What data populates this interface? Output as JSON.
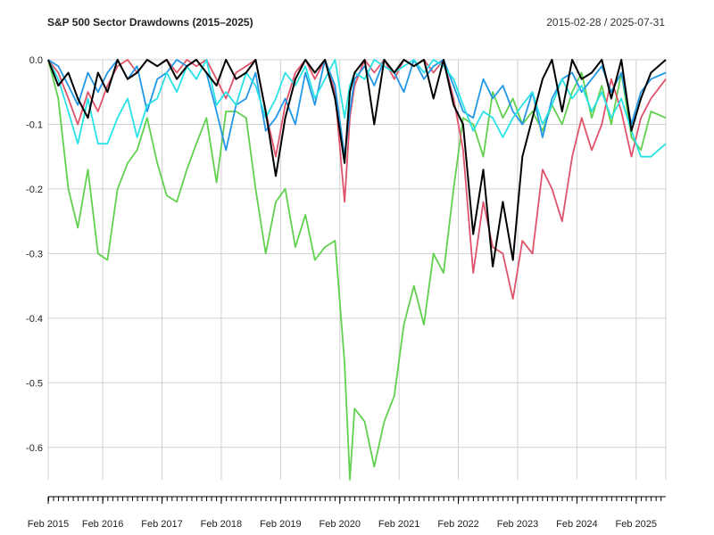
{
  "chart_title": "S&P 500 Sector Drawdowns (2015–2025)",
  "date_range": "2015-02-28 / 2025-07-31",
  "chart_data": {
    "type": "line",
    "title": "S&P 500 Sector Drawdowns (2015–2025)",
    "xlabel": "",
    "ylabel": "",
    "xlim": [
      2015.16,
      2025.58
    ],
    "ylim": [
      -0.65,
      0.0
    ],
    "grid": true,
    "yticks": [
      0.0,
      -0.1,
      -0.2,
      -0.3,
      -0.4,
      -0.5,
      -0.6
    ],
    "ytick_labels": [
      "0.0",
      "-0.1",
      "-0.2",
      "-0.3",
      "-0.4",
      "-0.5",
      "-0.6"
    ],
    "xticks": [
      2015.08,
      2016.08,
      2017.08,
      2018.08,
      2019.08,
      2020.08,
      2021.08,
      2022.08,
      2023.08,
      2024.08,
      2025.08
    ],
    "xtick_labels": [
      "Feb 2015",
      "Feb 2016",
      "Feb 2017",
      "Feb 2018",
      "Feb 2019",
      "Feb 2020",
      "Feb 2021",
      "Feb 2022",
      "Feb 2023",
      "Feb 2024",
      "Feb 2025"
    ],
    "series": [
      {
        "color": "#61D04F",
        "x": [
          2015.16,
          2015.33,
          2015.5,
          2015.66,
          2015.83,
          2016.0,
          2016.16,
          2016.33,
          2016.5,
          2016.66,
          2016.83,
          2017.0,
          2017.16,
          2017.33,
          2017.5,
          2017.66,
          2017.83,
          2018.0,
          2018.16,
          2018.33,
          2018.5,
          2018.66,
          2018.83,
          2019.0,
          2019.16,
          2019.33,
          2019.5,
          2019.66,
          2019.83,
          2020.0,
          2020.16,
          2020.25,
          2020.33,
          2020.5,
          2020.66,
          2020.83,
          2021.0,
          2021.16,
          2021.33,
          2021.5,
          2021.66,
          2021.83,
          2022.0,
          2022.16,
          2022.33,
          2022.5,
          2022.66,
          2022.83,
          2023.0,
          2023.16,
          2023.33,
          2023.5,
          2023.66,
          2023.83,
          2024.0,
          2024.16,
          2024.33,
          2024.5,
          2024.66,
          2024.83,
          2025.0,
          2025.16,
          2025.33,
          2025.58
        ],
        "values": [
          0.0,
          -0.06,
          -0.2,
          -0.26,
          -0.17,
          -0.3,
          -0.31,
          -0.2,
          -0.16,
          -0.14,
          -0.09,
          -0.16,
          -0.21,
          -0.22,
          -0.17,
          -0.13,
          -0.09,
          -0.19,
          -0.08,
          -0.08,
          -0.09,
          -0.2,
          -0.3,
          -0.22,
          -0.2,
          -0.29,
          -0.24,
          -0.31,
          -0.29,
          -0.28,
          -0.47,
          -0.65,
          -0.54,
          -0.56,
          -0.63,
          -0.56,
          -0.52,
          -0.41,
          -0.35,
          -0.41,
          -0.3,
          -0.33,
          -0.2,
          -0.09,
          -0.1,
          -0.15,
          -0.05,
          -0.09,
          -0.06,
          -0.1,
          -0.08,
          -0.11,
          -0.07,
          -0.1,
          -0.05,
          -0.02,
          -0.09,
          -0.04,
          -0.1,
          -0.02,
          -0.12,
          -0.14,
          -0.08,
          -0.09
        ]
      },
      {
        "color": "#DF536B",
        "x": [
          2015.16,
          2015.33,
          2015.5,
          2015.66,
          2015.83,
          2016.0,
          2016.16,
          2016.33,
          2016.5,
          2016.66,
          2016.83,
          2017.0,
          2017.16,
          2017.33,
          2017.5,
          2017.66,
          2017.83,
          2018.0,
          2018.16,
          2018.33,
          2018.5,
          2018.66,
          2018.83,
          2019.0,
          2019.16,
          2019.33,
          2019.5,
          2019.66,
          2019.83,
          2020.0,
          2020.16,
          2020.25,
          2020.33,
          2020.5,
          2020.66,
          2020.83,
          2021.0,
          2021.16,
          2021.33,
          2021.5,
          2021.66,
          2021.83,
          2022.0,
          2022.16,
          2022.33,
          2022.5,
          2022.66,
          2022.83,
          2023.0,
          2023.16,
          2023.33,
          2023.5,
          2023.66,
          2023.83,
          2024.0,
          2024.16,
          2024.33,
          2024.5,
          2024.66,
          2024.83,
          2025.0,
          2025.16,
          2025.33,
          2025.58
        ],
        "values": [
          0.0,
          -0.02,
          -0.06,
          -0.1,
          -0.05,
          -0.08,
          -0.04,
          -0.01,
          0.0,
          -0.02,
          0.0,
          -0.01,
          0.0,
          -0.02,
          0.0,
          -0.01,
          0.0,
          -0.03,
          -0.06,
          -0.02,
          -0.01,
          0.0,
          -0.08,
          -0.15,
          -0.07,
          -0.02,
          0.0,
          -0.03,
          0.0,
          -0.05,
          -0.22,
          -0.09,
          -0.04,
          0.0,
          -0.02,
          0.0,
          -0.03,
          0.0,
          -0.01,
          0.0,
          -0.02,
          0.0,
          -0.06,
          -0.14,
          -0.33,
          -0.22,
          -0.29,
          -0.3,
          -0.37,
          -0.28,
          -0.3,
          -0.17,
          -0.2,
          -0.25,
          -0.15,
          -0.09,
          -0.14,
          -0.1,
          -0.03,
          -0.08,
          -0.15,
          -0.09,
          -0.06,
          -0.03
        ]
      },
      {
        "color": "#2297E6",
        "x": [
          2015.16,
          2015.33,
          2015.5,
          2015.66,
          2015.83,
          2016.0,
          2016.16,
          2016.33,
          2016.5,
          2016.66,
          2016.83,
          2017.0,
          2017.16,
          2017.33,
          2017.5,
          2017.66,
          2017.83,
          2018.0,
          2018.16,
          2018.33,
          2018.5,
          2018.66,
          2018.83,
          2019.0,
          2019.16,
          2019.33,
          2019.5,
          2019.66,
          2019.83,
          2020.0,
          2020.16,
          2020.25,
          2020.33,
          2020.5,
          2020.66,
          2020.83,
          2021.0,
          2021.16,
          2021.33,
          2021.5,
          2021.66,
          2021.83,
          2022.0,
          2022.16,
          2022.33,
          2022.5,
          2022.66,
          2022.83,
          2023.0,
          2023.16,
          2023.33,
          2023.5,
          2023.66,
          2023.83,
          2024.0,
          2024.16,
          2024.33,
          2024.5,
          2024.66,
          2024.83,
          2025.0,
          2025.16,
          2025.33,
          2025.58
        ],
        "values": [
          0.0,
          -0.01,
          -0.04,
          -0.07,
          -0.02,
          -0.05,
          -0.02,
          0.0,
          -0.03,
          -0.01,
          -0.08,
          -0.03,
          -0.02,
          0.0,
          -0.01,
          0.0,
          -0.02,
          -0.08,
          -0.14,
          -0.07,
          -0.06,
          -0.02,
          -0.11,
          -0.09,
          -0.06,
          -0.1,
          -0.02,
          -0.07,
          0.0,
          -0.04,
          -0.15,
          -0.08,
          -0.03,
          -0.01,
          -0.04,
          0.0,
          -0.02,
          -0.05,
          0.0,
          -0.03,
          -0.01,
          0.0,
          -0.04,
          -0.08,
          -0.09,
          -0.03,
          -0.06,
          -0.04,
          -0.08,
          -0.1,
          -0.05,
          -0.12,
          -0.06,
          -0.03,
          -0.02,
          -0.05,
          -0.03,
          -0.01,
          -0.05,
          -0.02,
          -0.1,
          -0.05,
          -0.03,
          -0.02
        ]
      },
      {
        "color": "#28E2E5",
        "x": [
          2015.16,
          2015.33,
          2015.5,
          2015.66,
          2015.83,
          2016.0,
          2016.16,
          2016.33,
          2016.5,
          2016.66,
          2016.83,
          2017.0,
          2017.16,
          2017.33,
          2017.5,
          2017.66,
          2017.83,
          2018.0,
          2018.16,
          2018.33,
          2018.5,
          2018.66,
          2018.83,
          2019.0,
          2019.16,
          2019.33,
          2019.5,
          2019.66,
          2019.83,
          2020.0,
          2020.16,
          2020.25,
          2020.33,
          2020.5,
          2020.66,
          2020.83,
          2021.0,
          2021.16,
          2021.33,
          2021.5,
          2021.66,
          2021.83,
          2022.0,
          2022.16,
          2022.33,
          2022.5,
          2022.66,
          2022.83,
          2023.0,
          2023.16,
          2023.33,
          2023.5,
          2023.66,
          2023.83,
          2024.0,
          2024.16,
          2024.33,
          2024.5,
          2024.66,
          2024.83,
          2025.0,
          2025.16,
          2025.33,
          2025.58
        ],
        "values": [
          0.0,
          -0.03,
          -0.08,
          -0.13,
          -0.06,
          -0.13,
          -0.13,
          -0.09,
          -0.06,
          -0.12,
          -0.07,
          -0.06,
          -0.02,
          -0.05,
          -0.01,
          -0.03,
          0.0,
          -0.07,
          -0.05,
          -0.07,
          -0.02,
          -0.04,
          -0.09,
          -0.06,
          -0.02,
          -0.04,
          -0.01,
          -0.06,
          -0.03,
          0.0,
          -0.09,
          -0.04,
          -0.02,
          -0.03,
          0.0,
          -0.01,
          -0.02,
          -0.01,
          0.0,
          -0.02,
          0.0,
          -0.01,
          -0.03,
          -0.07,
          -0.11,
          -0.08,
          -0.09,
          -0.12,
          -0.09,
          -0.07,
          -0.05,
          -0.1,
          -0.07,
          -0.03,
          -0.06,
          -0.04,
          -0.08,
          -0.05,
          -0.09,
          -0.06,
          -0.11,
          -0.15,
          -0.15,
          -0.13
        ]
      },
      {
        "color": "#000000",
        "x": [
          2015.16,
          2015.33,
          2015.5,
          2015.66,
          2015.83,
          2016.0,
          2016.16,
          2016.33,
          2016.5,
          2016.66,
          2016.83,
          2017.0,
          2017.16,
          2017.33,
          2017.5,
          2017.66,
          2017.83,
          2018.0,
          2018.16,
          2018.33,
          2018.5,
          2018.66,
          2018.83,
          2019.0,
          2019.16,
          2019.33,
          2019.5,
          2019.66,
          2019.83,
          2020.0,
          2020.16,
          2020.25,
          2020.33,
          2020.5,
          2020.66,
          2020.83,
          2021.0,
          2021.16,
          2021.33,
          2021.5,
          2021.66,
          2021.83,
          2022.0,
          2022.16,
          2022.33,
          2022.5,
          2022.66,
          2022.83,
          2023.0,
          2023.16,
          2023.33,
          2023.5,
          2023.66,
          2023.83,
          2024.0,
          2024.16,
          2024.33,
          2024.5,
          2024.66,
          2024.83,
          2025.0,
          2025.16,
          2025.33,
          2025.58
        ],
        "values": [
          0.0,
          -0.04,
          -0.02,
          -0.06,
          -0.09,
          -0.02,
          -0.05,
          0.0,
          -0.03,
          -0.02,
          0.0,
          -0.01,
          0.0,
          -0.03,
          -0.01,
          0.0,
          -0.02,
          -0.04,
          0.0,
          -0.03,
          -0.02,
          0.0,
          -0.08,
          -0.18,
          -0.09,
          -0.03,
          0.0,
          -0.02,
          0.0,
          -0.06,
          -0.16,
          -0.05,
          -0.02,
          0.0,
          -0.1,
          0.0,
          -0.02,
          0.0,
          -0.01,
          0.0,
          -0.06,
          0.0,
          -0.07,
          -0.1,
          -0.27,
          -0.17,
          -0.32,
          -0.22,
          -0.31,
          -0.15,
          -0.09,
          -0.03,
          0.0,
          -0.08,
          0.0,
          -0.03,
          -0.02,
          0.0,
          -0.06,
          0.0,
          -0.11,
          -0.06,
          -0.02,
          0.0
        ]
      }
    ]
  }
}
